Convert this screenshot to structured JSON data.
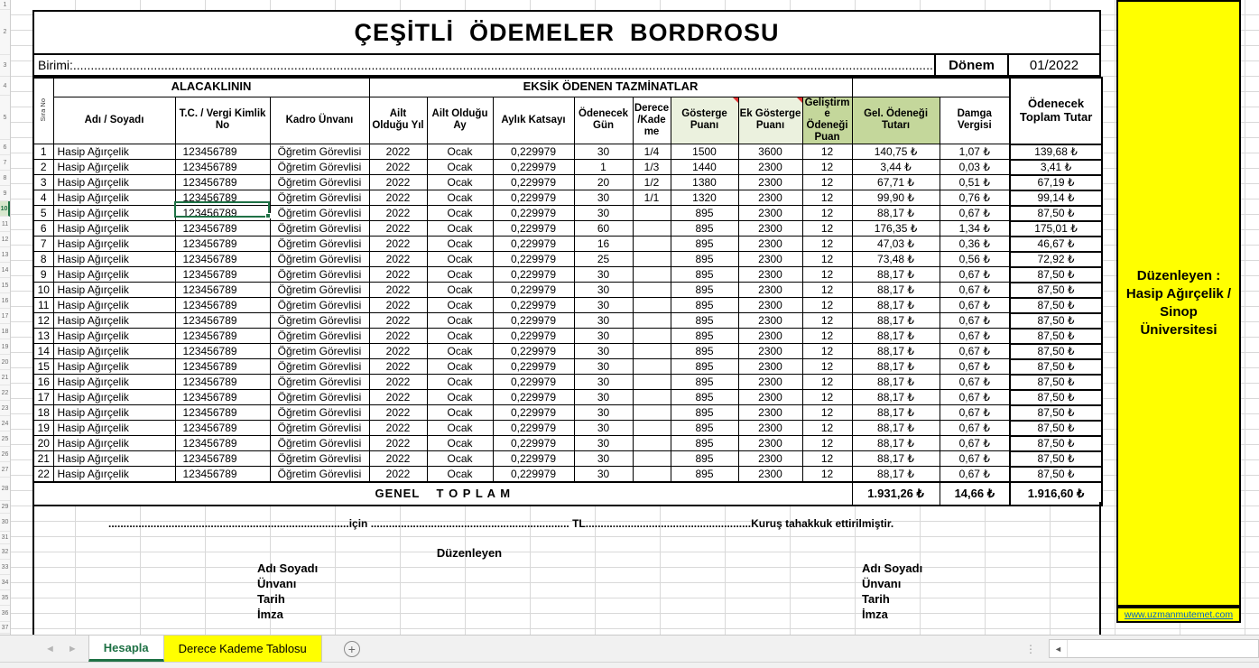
{
  "header": {
    "title": "ÇEŞİTLİ  ÖDEMELER  BORDROSU",
    "birimi": "Birimi:..........................................................................................................................................................................................................................................................................................................",
    "donem_label": "Dönem",
    "donem_value": "01/2022"
  },
  "table": {
    "group_headers": {
      "alacaklinin": "ALACAKLININ",
      "eksik": "EKSİK ÖDENEN TAZMİNATLAR"
    },
    "columns": [
      "Sıra No",
      "Adı / Soyadı",
      "T.C. / Vergi Kimlik No",
      "Kadro Ünvanı",
      "Ailt Olduğu Yıl",
      "Ailt Olduğu Ay",
      "Aylık Katsayı",
      "Ödenecek Gün",
      "Derece/Kademe",
      "Gösterge Puanı",
      "Ek Gösterge Puanı",
      "Geliştirme Ödeneği Puan",
      "Gel. Ödeneği Tutarı",
      "Damga Vergisi",
      "Ödenecek Toplam Tutar"
    ],
    "rows": [
      [
        "1",
        "Hasip Ağırçelik",
        "123456789",
        "Öğretim Görevlisi",
        "2022",
        "Ocak",
        "0,229979",
        "30",
        "1/4",
        "1500",
        "3600",
        "12",
        "140,75 ₺",
        "1,07 ₺",
        "139,68 ₺"
      ],
      [
        "2",
        "Hasip Ağırçelik",
        "123456789",
        "Öğretim Görevlisi",
        "2022",
        "Ocak",
        "0,229979",
        "1",
        "1/3",
        "1440",
        "2300",
        "12",
        "3,44 ₺",
        "0,03 ₺",
        "3,41 ₺"
      ],
      [
        "3",
        "Hasip Ağırçelik",
        "123456789",
        "Öğretim Görevlisi",
        "2022",
        "Ocak",
        "0,229979",
        "20",
        "1/2",
        "1380",
        "2300",
        "12",
        "67,71 ₺",
        "0,51 ₺",
        "67,19 ₺"
      ],
      [
        "4",
        "Hasip Ağırçelik",
        "123456789",
        "Öğretim Görevlisi",
        "2022",
        "Ocak",
        "0,229979",
        "30",
        "1/1",
        "1320",
        "2300",
        "12",
        "99,90 ₺",
        "0,76 ₺",
        "99,14 ₺"
      ],
      [
        "5",
        "Hasip Ağırçelik",
        "123456789",
        "Öğretim Görevlisi",
        "2022",
        "Ocak",
        "0,229979",
        "30",
        "",
        "895",
        "2300",
        "12",
        "88,17 ₺",
        "0,67 ₺",
        "87,50 ₺"
      ],
      [
        "6",
        "Hasip Ağırçelik",
        "123456789",
        "Öğretim Görevlisi",
        "2022",
        "Ocak",
        "0,229979",
        "60",
        "",
        "895",
        "2300",
        "12",
        "176,35 ₺",
        "1,34 ₺",
        "175,01 ₺"
      ],
      [
        "7",
        "Hasip Ağırçelik",
        "123456789",
        "Öğretim Görevlisi",
        "2022",
        "Ocak",
        "0,229979",
        "16",
        "",
        "895",
        "2300",
        "12",
        "47,03 ₺",
        "0,36 ₺",
        "46,67 ₺"
      ],
      [
        "8",
        "Hasip Ağırçelik",
        "123456789",
        "Öğretim Görevlisi",
        "2022",
        "Ocak",
        "0,229979",
        "25",
        "",
        "895",
        "2300",
        "12",
        "73,48 ₺",
        "0,56 ₺",
        "72,92 ₺"
      ],
      [
        "9",
        "Hasip Ağırçelik",
        "123456789",
        "Öğretim Görevlisi",
        "2022",
        "Ocak",
        "0,229979",
        "30",
        "",
        "895",
        "2300",
        "12",
        "88,17 ₺",
        "0,67 ₺",
        "87,50 ₺"
      ],
      [
        "10",
        "Hasip Ağırçelik",
        "123456789",
        "Öğretim Görevlisi",
        "2022",
        "Ocak",
        "0,229979",
        "30",
        "",
        "895",
        "2300",
        "12",
        "88,17 ₺",
        "0,67 ₺",
        "87,50 ₺"
      ],
      [
        "11",
        "Hasip Ağırçelik",
        "123456789",
        "Öğretim Görevlisi",
        "2022",
        "Ocak",
        "0,229979",
        "30",
        "",
        "895",
        "2300",
        "12",
        "88,17 ₺",
        "0,67 ₺",
        "87,50 ₺"
      ],
      [
        "12",
        "Hasip Ağırçelik",
        "123456789",
        "Öğretim Görevlisi",
        "2022",
        "Ocak",
        "0,229979",
        "30",
        "",
        "895",
        "2300",
        "12",
        "88,17 ₺",
        "0,67 ₺",
        "87,50 ₺"
      ],
      [
        "13",
        "Hasip Ağırçelik",
        "123456789",
        "Öğretim Görevlisi",
        "2022",
        "Ocak",
        "0,229979",
        "30",
        "",
        "895",
        "2300",
        "12",
        "88,17 ₺",
        "0,67 ₺",
        "87,50 ₺"
      ],
      [
        "14",
        "Hasip Ağırçelik",
        "123456789",
        "Öğretim Görevlisi",
        "2022",
        "Ocak",
        "0,229979",
        "30",
        "",
        "895",
        "2300",
        "12",
        "88,17 ₺",
        "0,67 ₺",
        "87,50 ₺"
      ],
      [
        "15",
        "Hasip Ağırçelik",
        "123456789",
        "Öğretim Görevlisi",
        "2022",
        "Ocak",
        "0,229979",
        "30",
        "",
        "895",
        "2300",
        "12",
        "88,17 ₺",
        "0,67 ₺",
        "87,50 ₺"
      ],
      [
        "16",
        "Hasip Ağırçelik",
        "123456789",
        "Öğretim Görevlisi",
        "2022",
        "Ocak",
        "0,229979",
        "30",
        "",
        "895",
        "2300",
        "12",
        "88,17 ₺",
        "0,67 ₺",
        "87,50 ₺"
      ],
      [
        "17",
        "Hasip Ağırçelik",
        "123456789",
        "Öğretim Görevlisi",
        "2022",
        "Ocak",
        "0,229979",
        "30",
        "",
        "895",
        "2300",
        "12",
        "88,17 ₺",
        "0,67 ₺",
        "87,50 ₺"
      ],
      [
        "18",
        "Hasip Ağırçelik",
        "123456789",
        "Öğretim Görevlisi",
        "2022",
        "Ocak",
        "0,229979",
        "30",
        "",
        "895",
        "2300",
        "12",
        "88,17 ₺",
        "0,67 ₺",
        "87,50 ₺"
      ],
      [
        "19",
        "Hasip Ağırçelik",
        "123456789",
        "Öğretim Görevlisi",
        "2022",
        "Ocak",
        "0,229979",
        "30",
        "",
        "895",
        "2300",
        "12",
        "88,17 ₺",
        "0,67 ₺",
        "87,50 ₺"
      ],
      [
        "20",
        "Hasip Ağırçelik",
        "123456789",
        "Öğretim Görevlisi",
        "2022",
        "Ocak",
        "0,229979",
        "30",
        "",
        "895",
        "2300",
        "12",
        "88,17 ₺",
        "0,67 ₺",
        "87,50 ₺"
      ],
      [
        "21",
        "Hasip Ağırçelik",
        "123456789",
        "Öğretim Görevlisi",
        "2022",
        "Ocak",
        "0,229979",
        "30",
        "",
        "895",
        "2300",
        "12",
        "88,17 ₺",
        "0,67 ₺",
        "87,50 ₺"
      ],
      [
        "22",
        "Hasip Ağırçelik",
        "123456789",
        "Öğretim Görevlisi",
        "2022",
        "Ocak",
        "0,229979",
        "30",
        "",
        "895",
        "2300",
        "12",
        "88,17 ₺",
        "0,67 ₺",
        "87,50 ₺"
      ]
    ],
    "total": {
      "label": "GENEL    T O P L A M",
      "gel_odenegi_tutari": "1.931,26 ₺",
      "damga_vergisi": "14,66 ₺",
      "odenecek_toplam": "1.916,60 ₺"
    }
  },
  "footer": {
    "tahakkuk_line": "................................................................................için .................................................................. TL.......................................................Kuruş  tahakkuk ettirilmiştir.",
    "duzenleyen_header": "Düzenleyen",
    "signature_labels": [
      "Adı Soyadı",
      "Ünvanı",
      "Tarih",
      "İmza"
    ]
  },
  "sidebar": {
    "text": "Düzenleyen :\nHasip Ağırçelik  /\nSinop\nÜniversitesi",
    "link": "www.uzmanmutemet.com",
    "bg_color": "#ffff00"
  },
  "sheet_tabs": {
    "active": "Hesapla",
    "other": "Derece Kademe Tablosu",
    "add_label": "+"
  },
  "row_gutter": {
    "numbers": [
      "1",
      "2",
      "3",
      "4",
      "5",
      "6",
      "7",
      "8",
      "9",
      "10",
      "11",
      "12",
      "13",
      "14",
      "15",
      "16",
      "17",
      "18",
      "19",
      "20",
      "21",
      "22",
      "23",
      "24",
      "25",
      "26",
      "27",
      "28",
      "29",
      "30",
      "31",
      "32",
      "33",
      "34",
      "35",
      "36",
      "37"
    ],
    "active_row": "10"
  },
  "colors": {
    "accent_green": "#1e7145",
    "header_light_green": "#ebf1de",
    "header_dark_green": "#c4d79b",
    "sidebar_yellow": "#ffff00",
    "link_blue": "#0563c1",
    "comment_red": "#e03030"
  }
}
